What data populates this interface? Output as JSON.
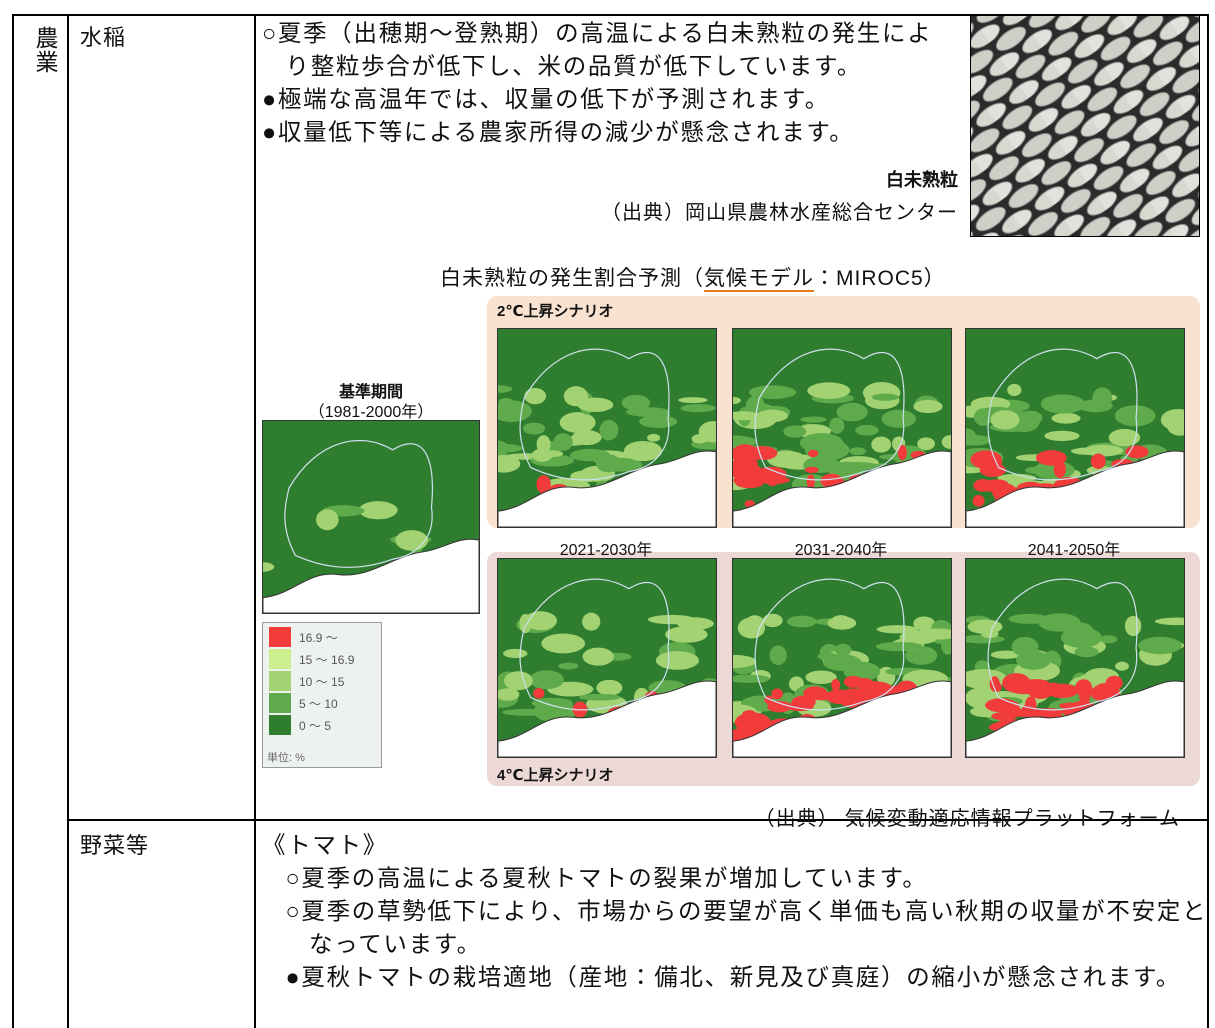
{
  "table": {
    "sector": "農業",
    "rows": [
      {
        "item": "水稲",
        "bullets": [
          "○夏季（出穂期～登熟期）の高温による白未熟粒の発生により整粒歩合が低下し、米の品質が低下しています。",
          "●極端な高温年では、収量の低下が予測されます。",
          "●収量低下等による農家所得の減少が懸念されます。"
        ],
        "photo_caption": "白未熟粒",
        "photo_source": "（出典）岡山県農林水産総合センター",
        "figure": {
          "title_prefix": "白未熟粒の発生割合予測（",
          "title_link": "気候モデル",
          "title_suffix": "：MIROC5）",
          "baseline_label": "基準期間",
          "baseline_period": "（1981-2000年）",
          "scenarios": [
            {
              "name": "2℃上昇シナリオ",
              "color": "#f9e2cf"
            },
            {
              "name": "4℃上昇シナリオ",
              "color": "#ecd9d6"
            }
          ],
          "periods": [
            "2021-2030年",
            "2031-2040年",
            "2041-2050年"
          ],
          "legend": [
            {
              "label": "16.9 ～",
              "color": "#f23b3b"
            },
            {
              "label": "15 ～ 16.9",
              "color": "#ccef8e"
            },
            {
              "label": "10 ～ 15",
              "color": "#a3d273"
            },
            {
              "label": "5 ～ 10",
              "color": "#5fab4c"
            },
            {
              "label": "0 ～ 5",
              "color": "#2f7d2f"
            }
          ],
          "unit": "単位: %",
          "source": "（出典） 気候変動適応情報プラットフォーム"
        }
      },
      {
        "item": "野菜等",
        "subheading": "《トマト》",
        "bullets": [
          "○夏季の高温による夏秋トマトの裂果が増加しています。",
          "○夏季の草勢低下により、市場からの要望が高く単価も高い秋期の収量が不安定となっています。",
          "●夏秋トマトの栽培適地（産地：備北、新見及び真庭）の縮小が懸念されます。"
        ]
      }
    ]
  }
}
